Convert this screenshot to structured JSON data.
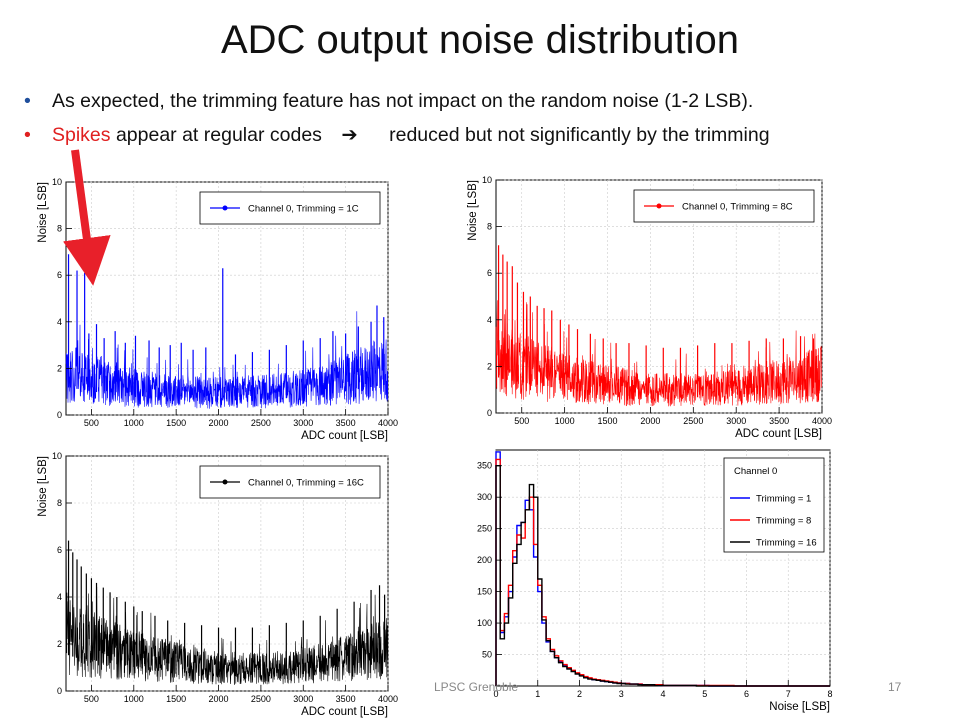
{
  "slide": {
    "title": "ADC output noise distribution",
    "bullets": [
      {
        "text": "As expected, the trimming feature has not impact on the random noise (1-2 LSB)."
      },
      {
        "highlight": "Spikes",
        "text_before_arrow": " appear at regular codes",
        "text_after_arrow": "reduced but not significantly by the trimming"
      }
    ],
    "footer_org": "LPSC Grenoble",
    "page_number": "17"
  },
  "colors": {
    "blue": "#0000ff",
    "red": "#ff0000",
    "black": "#000000",
    "arrow": "#e8202a"
  },
  "icons": {
    "bullet": "bullet-dot-icon",
    "arrow": "right-arrow-icon",
    "callout": "red-callout-arrow-icon"
  },
  "chart_data": [
    {
      "id": "ch1c",
      "type": "line",
      "xlabel": "ADC count [LSB]",
      "ylabel": "Noise [LSB]",
      "xlim": [
        200,
        4000
      ],
      "ylim": [
        0,
        10
      ],
      "xticks": [
        500,
        1000,
        1500,
        2000,
        2500,
        3000,
        3500,
        4000
      ],
      "yticks": [
        0,
        2,
        4,
        6,
        8,
        10
      ],
      "grid": true,
      "legend_position": "top-right",
      "series": [
        {
          "name": "Channel 0, Trimming = 1C",
          "color": "#0000ff",
          "x": [
            200,
            300,
            400,
            500,
            600,
            700,
            800,
            900,
            1000,
            1100,
            1200,
            1300,
            1400,
            1500,
            1600,
            1700,
            1800,
            1900,
            2000,
            2100,
            2200,
            2300,
            2400,
            2500,
            2600,
            2700,
            2800,
            2900,
            3000,
            3100,
            3200,
            3300,
            3400,
            3500,
            3600,
            3700,
            3800,
            3900,
            4000
          ],
          "y": [
            2.0,
            1.9,
            1.8,
            1.7,
            1.6,
            1.5,
            1.4,
            1.35,
            1.3,
            1.25,
            1.2,
            1.2,
            1.15,
            1.1,
            1.1,
            1.1,
            1.05,
            1.05,
            1.05,
            1.05,
            1.05,
            1.1,
            1.1,
            1.1,
            1.15,
            1.15,
            1.2,
            1.25,
            1.3,
            1.35,
            1.4,
            1.5,
            1.6,
            1.7,
            1.8,
            1.9,
            2.0,
            2.1,
            2.2
          ]
        }
      ],
      "spikes": [
        [
          230,
          6.9
        ],
        [
          330,
          6.2
        ],
        [
          420,
          6.1
        ],
        [
          470,
          3.5
        ],
        [
          560,
          3.9
        ],
        [
          650,
          3.3
        ],
        [
          780,
          3.6
        ],
        [
          900,
          3.1
        ],
        [
          1020,
          3.4
        ],
        [
          1180,
          3.2
        ],
        [
          1300,
          2.9
        ],
        [
          1430,
          3.0
        ],
        [
          1560,
          3.1
        ],
        [
          1700,
          2.8
        ],
        [
          1850,
          2.9
        ],
        [
          2050,
          6.3
        ],
        [
          2200,
          2.6
        ],
        [
          2400,
          2.7
        ],
        [
          2600,
          2.8
        ],
        [
          2800,
          3.0
        ],
        [
          3000,
          3.2
        ],
        [
          3200,
          3.3
        ],
        [
          3350,
          3.6
        ],
        [
          3500,
          3.5
        ],
        [
          3650,
          3.8
        ],
        [
          3800,
          4.0
        ],
        [
          3870,
          4.7
        ],
        [
          3950,
          4.2
        ]
      ]
    },
    {
      "id": "ch8c",
      "type": "line",
      "xlabel": "ADC count [LSB]",
      "ylabel": "Noise [LSB]",
      "xlim": [
        200,
        4000
      ],
      "ylim": [
        0,
        10
      ],
      "xticks": [
        500,
        1000,
        1500,
        2000,
        2500,
        3000,
        3500,
        4000
      ],
      "yticks": [
        0,
        2,
        4,
        6,
        8,
        10
      ],
      "grid": true,
      "legend_position": "top-right",
      "series": [
        {
          "name": "Channel 0, Trimming = 8C",
          "color": "#ff0000",
          "x": [
            200,
            300,
            400,
            500,
            600,
            700,
            800,
            900,
            1000,
            1100,
            1200,
            1300,
            1400,
            1500,
            1600,
            1700,
            1800,
            1900,
            2000,
            2100,
            2200,
            2300,
            2400,
            2500,
            2600,
            2700,
            2800,
            2900,
            3000,
            3100,
            3200,
            3300,
            3400,
            3500,
            3600,
            3700,
            3800,
            3900,
            4000
          ],
          "y": [
            2.6,
            2.4,
            2.3,
            2.2,
            2.1,
            2.0,
            1.9,
            1.8,
            1.7,
            1.6,
            1.5,
            1.45,
            1.4,
            1.35,
            1.3,
            1.25,
            1.2,
            1.15,
            1.15,
            1.1,
            1.1,
            1.1,
            1.1,
            1.1,
            1.15,
            1.15,
            1.2,
            1.2,
            1.25,
            1.3,
            1.35,
            1.4,
            1.45,
            1.5,
            1.55,
            1.6,
            1.7,
            1.8,
            1.9
          ]
        }
      ],
      "spikes": [
        [
          230,
          7.2
        ],
        [
          280,
          6.8
        ],
        [
          330,
          6.5
        ],
        [
          390,
          6.3
        ],
        [
          450,
          5.6
        ],
        [
          520,
          5.2
        ],
        [
          600,
          5.0
        ],
        [
          680,
          4.6
        ],
        [
          760,
          4.5
        ],
        [
          850,
          4.4
        ],
        [
          950,
          4.0
        ],
        [
          1050,
          3.8
        ],
        [
          1150,
          3.6
        ],
        [
          1300,
          3.4
        ],
        [
          1450,
          3.2
        ],
        [
          1600,
          3.0
        ],
        [
          1750,
          3.0
        ],
        [
          1950,
          2.9
        ],
        [
          2150,
          2.8
        ],
        [
          2350,
          2.8
        ],
        [
          2550,
          2.9
        ],
        [
          2750,
          3.0
        ],
        [
          2950,
          3.0
        ],
        [
          3150,
          3.1
        ],
        [
          3350,
          3.2
        ],
        [
          3550,
          3.2
        ],
        [
          3750,
          3.3
        ],
        [
          3900,
          3.2
        ]
      ]
    },
    {
      "id": "ch16c",
      "type": "line",
      "xlabel": "ADC count [LSB]",
      "ylabel": "Noise [LSB]",
      "xlim": [
        200,
        4000
      ],
      "ylim": [
        0,
        10
      ],
      "xticks": [
        500,
        1000,
        1500,
        2000,
        2500,
        3000,
        3500,
        4000
      ],
      "yticks": [
        0,
        2,
        4,
        6,
        8,
        10
      ],
      "grid": true,
      "legend_position": "top-right",
      "series": [
        {
          "name": "Channel 0, Trimming = 16C",
          "color": "#000000",
          "x": [
            200,
            300,
            400,
            500,
            600,
            700,
            800,
            900,
            1000,
            1100,
            1200,
            1300,
            1400,
            1500,
            1600,
            1700,
            1800,
            1900,
            2000,
            2100,
            2200,
            2300,
            2400,
            2500,
            2600,
            2700,
            2800,
            2900,
            3000,
            3100,
            3200,
            3300,
            3400,
            3500,
            3600,
            3700,
            3800,
            3900,
            4000
          ],
          "y": [
            2.6,
            2.4,
            2.3,
            2.2,
            2.1,
            2.0,
            1.9,
            1.8,
            1.7,
            1.6,
            1.5,
            1.45,
            1.4,
            1.35,
            1.3,
            1.25,
            1.2,
            1.15,
            1.1,
            1.1,
            1.05,
            1.05,
            1.05,
            1.05,
            1.05,
            1.1,
            1.1,
            1.15,
            1.2,
            1.25,
            1.3,
            1.35,
            1.45,
            1.55,
            1.65,
            1.75,
            1.85,
            1.95,
            2.1
          ]
        }
      ],
      "spikes": [
        [
          230,
          6.4
        ],
        [
          280,
          5.9
        ],
        [
          330,
          5.6
        ],
        [
          380,
          5.3
        ],
        [
          440,
          5.0
        ],
        [
          500,
          4.8
        ],
        [
          560,
          4.6
        ],
        [
          640,
          4.4
        ],
        [
          720,
          4.2
        ],
        [
          800,
          4.0
        ],
        [
          900,
          3.8
        ],
        [
          1000,
          3.6
        ],
        [
          1100,
          3.4
        ],
        [
          1250,
          3.2
        ],
        [
          1400,
          3.0
        ],
        [
          1600,
          2.9
        ],
        [
          1800,
          2.8
        ],
        [
          2000,
          2.7
        ],
        [
          2200,
          2.7
        ],
        [
          2400,
          2.7
        ],
        [
          2600,
          2.8
        ],
        [
          2800,
          2.9
        ],
        [
          3000,
          3.0
        ],
        [
          3200,
          3.2
        ],
        [
          3400,
          3.5
        ],
        [
          3600,
          3.8
        ],
        [
          3800,
          4.3
        ],
        [
          3900,
          4.5
        ],
        [
          3960,
          4.1
        ]
      ]
    },
    {
      "id": "hist",
      "type": "bar",
      "xlabel": "Noise [LSB]",
      "ylabel": "",
      "xlim": [
        0,
        8
      ],
      "ylim": [
        0,
        375
      ],
      "xticks": [
        0,
        1,
        2,
        3,
        4,
        5,
        6,
        7,
        8
      ],
      "yticks": [
        50,
        100,
        150,
        200,
        250,
        300,
        350
      ],
      "grid": true,
      "legend_position": "top-right",
      "legend_header": "Channel 0",
      "bin_width": 0.1,
      "series": [
        {
          "name": "Trimming = 1",
          "color": "#0000ff",
          "values": [
            372,
            85,
            110,
            150,
            205,
            255,
            260,
            295,
            280,
            205,
            150,
            100,
            70,
            55,
            45,
            38,
            33,
            28,
            24,
            20,
            17,
            14,
            12,
            10,
            9,
            8,
            7,
            6,
            5,
            5,
            4,
            4,
            3,
            3,
            3,
            2,
            2,
            2,
            2,
            1,
            1,
            1,
            1,
            1,
            1,
            1,
            1,
            1,
            1,
            1,
            1,
            0,
            0,
            0,
            0,
            0,
            0,
            0,
            0,
            0,
            0,
            0,
            0,
            0,
            0,
            0,
            0,
            0,
            0,
            0,
            0,
            0,
            0,
            0,
            0,
            0,
            0,
            0,
            0,
            0
          ]
        },
        {
          "name": "Trimming = 8",
          "color": "#ff0000",
          "values": [
            360,
            88,
            115,
            160,
            215,
            240,
            235,
            280,
            300,
            225,
            160,
            110,
            75,
            58,
            48,
            40,
            34,
            29,
            25,
            21,
            18,
            15,
            13,
            11,
            10,
            9,
            8,
            7,
            6,
            5,
            4,
            4,
            3,
            3,
            3,
            2,
            2,
            2,
            2,
            2,
            1,
            1,
            1,
            1,
            1,
            1,
            1,
            1,
            1,
            1,
            1,
            1,
            1,
            1,
            1,
            1,
            1,
            0,
            0,
            0,
            0,
            0,
            0,
            0,
            0,
            0,
            0,
            0,
            0,
            0,
            0,
            0,
            0,
            0,
            0,
            0,
            0,
            0,
            0,
            0
          ]
        },
        {
          "name": "Trimming = 16",
          "color": "#000000",
          "values": [
            350,
            75,
            100,
            140,
            195,
            225,
            260,
            280,
            320,
            300,
            170,
            105,
            72,
            55,
            45,
            37,
            31,
            27,
            23,
            19,
            16,
            13,
            11,
            10,
            9,
            8,
            7,
            6,
            5,
            4,
            4,
            3,
            3,
            3,
            2,
            2,
            2,
            2,
            1,
            1,
            1,
            1,
            1,
            1,
            1,
            1,
            1,
            1,
            0,
            0,
            0,
            0,
            0,
            0,
            0,
            0,
            0,
            0,
            0,
            0,
            0,
            0,
            0,
            0,
            0,
            0,
            0,
            0,
            0,
            0,
            0,
            0,
            0,
            0,
            0,
            0,
            0,
            0,
            0,
            0
          ]
        }
      ]
    }
  ]
}
